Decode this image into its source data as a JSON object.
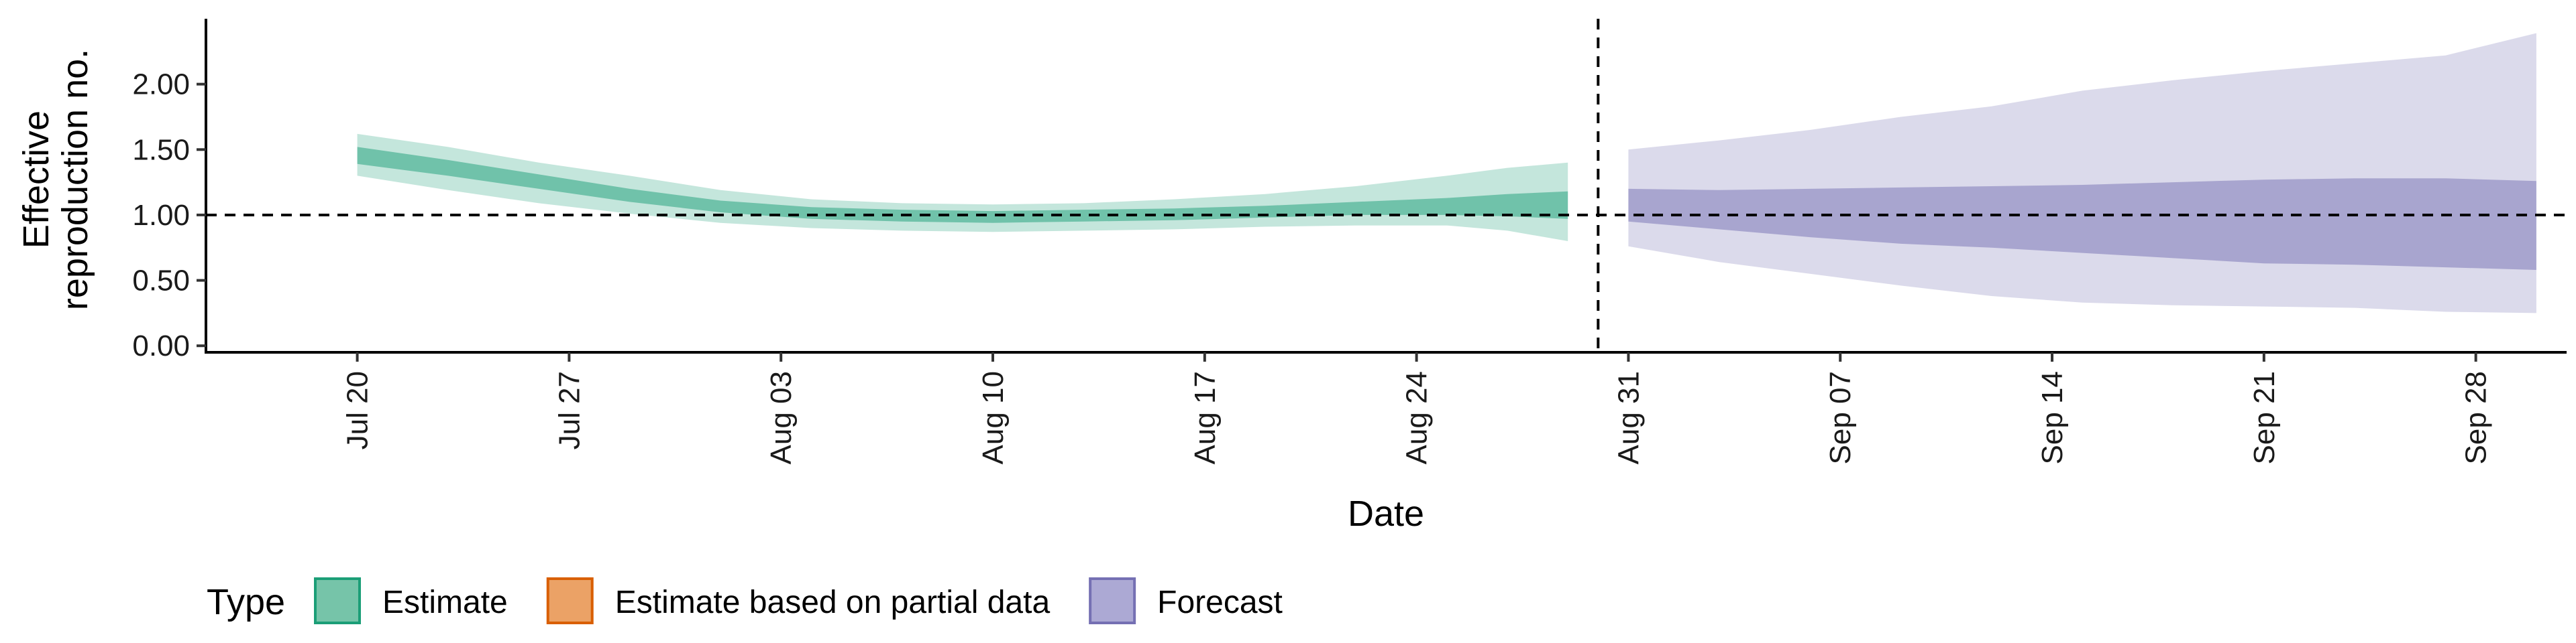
{
  "chart_data": {
    "type": "area",
    "xlabel": "Date",
    "ylabel_lines": [
      "Effective",
      "reproduction no."
    ],
    "y_ticks": [
      0,
      0.5,
      1.0,
      1.5,
      2.0
    ],
    "y_tick_labels": [
      "0.00",
      "0.50",
      "1.00",
      "1.50",
      "2.00"
    ],
    "ylim": [
      -0.05,
      2.5
    ],
    "xlim": [
      "2020-07-15",
      "2020-10-01"
    ],
    "x_ticks": [
      "2020-07-20",
      "2020-07-27",
      "2020-08-03",
      "2020-08-10",
      "2020-08-17",
      "2020-08-24",
      "2020-08-31",
      "2020-09-07",
      "2020-09-14",
      "2020-09-21",
      "2020-09-28"
    ],
    "x_tick_labels": [
      "Jul 20",
      "Jul 27",
      "Aug 03",
      "Aug 10",
      "Aug 17",
      "Aug 24",
      "Aug 31",
      "Sep 07",
      "Sep 14",
      "Sep 21",
      "Sep 28"
    ],
    "reference_hline": 1.0,
    "reference_vline": "2020-08-30",
    "series": [
      {
        "name": "Estimate",
        "color": "#1B9E77",
        "x": [
          "2020-07-20",
          "2020-07-23",
          "2020-07-26",
          "2020-07-29",
          "2020-08-01",
          "2020-08-04",
          "2020-08-07",
          "2020-08-10",
          "2020-08-13",
          "2020-08-16",
          "2020-08-19",
          "2020-08-22",
          "2020-08-25",
          "2020-08-27",
          "2020-08-29"
        ],
        "lower_90": [
          1.3,
          1.19,
          1.09,
          1.01,
          0.94,
          0.9,
          0.88,
          0.87,
          0.88,
          0.89,
          0.91,
          0.92,
          0.92,
          0.88,
          0.8
        ],
        "lower_50": [
          1.39,
          1.3,
          1.2,
          1.1,
          1.02,
          0.97,
          0.95,
          0.94,
          0.95,
          0.96,
          0.98,
          1.0,
          1.0,
          0.99,
          0.97
        ],
        "upper_50": [
          1.52,
          1.42,
          1.31,
          1.2,
          1.11,
          1.06,
          1.04,
          1.03,
          1.04,
          1.05,
          1.07,
          1.1,
          1.13,
          1.16,
          1.18
        ],
        "upper_90": [
          1.62,
          1.52,
          1.4,
          1.3,
          1.19,
          1.12,
          1.09,
          1.08,
          1.09,
          1.12,
          1.16,
          1.22,
          1.3,
          1.36,
          1.4
        ]
      },
      {
        "name": "Forecast",
        "color": "#7570B3",
        "x": [
          "2020-08-31",
          "2020-09-03",
          "2020-09-06",
          "2020-09-09",
          "2020-09-12",
          "2020-09-15",
          "2020-09-18",
          "2020-09-21",
          "2020-09-24",
          "2020-09-27",
          "2020-09-30"
        ],
        "lower_90": [
          0.76,
          0.64,
          0.55,
          0.46,
          0.38,
          0.33,
          0.31,
          0.3,
          0.29,
          0.26,
          0.25
        ],
        "lower_50": [
          0.95,
          0.89,
          0.83,
          0.78,
          0.75,
          0.71,
          0.67,
          0.63,
          0.62,
          0.6,
          0.58
        ],
        "upper_50": [
          1.2,
          1.19,
          1.2,
          1.21,
          1.22,
          1.23,
          1.25,
          1.27,
          1.28,
          1.28,
          1.26
        ],
        "upper_90": [
          1.5,
          1.57,
          1.65,
          1.75,
          1.83,
          1.95,
          2.03,
          2.1,
          2.16,
          2.22,
          2.39
        ]
      }
    ],
    "legend": {
      "title": "Type",
      "position": "bottom-left",
      "items": [
        {
          "label": "Estimate",
          "fill": "#76C4A9",
          "stroke": "#1B9E77"
        },
        {
          "label": "Estimate based on partial data",
          "fill": "#EBA266",
          "stroke": "#D95F02"
        },
        {
          "label": "Forecast",
          "fill": "#ACA9D4",
          "stroke": "#7570B3"
        }
      ]
    },
    "grid": false
  }
}
